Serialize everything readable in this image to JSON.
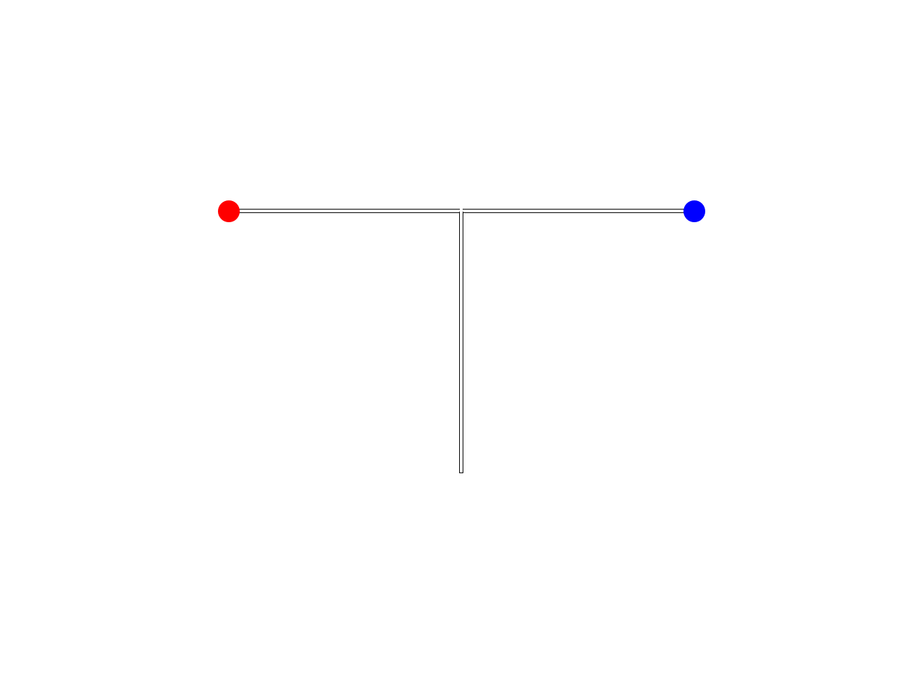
{
  "game": {
    "maze": {
      "shape": "T-junction",
      "corridors": [
        "left-arm",
        "right-arm",
        "stem-down"
      ]
    },
    "markers": {
      "start": {
        "color": "#ff0000",
        "icon": "red-circle-icon"
      },
      "goal": {
        "color": "#0000ff",
        "icon": "blue-circle-icon"
      }
    },
    "colors": {
      "background": "#ffffff",
      "wall": "#000000"
    }
  }
}
